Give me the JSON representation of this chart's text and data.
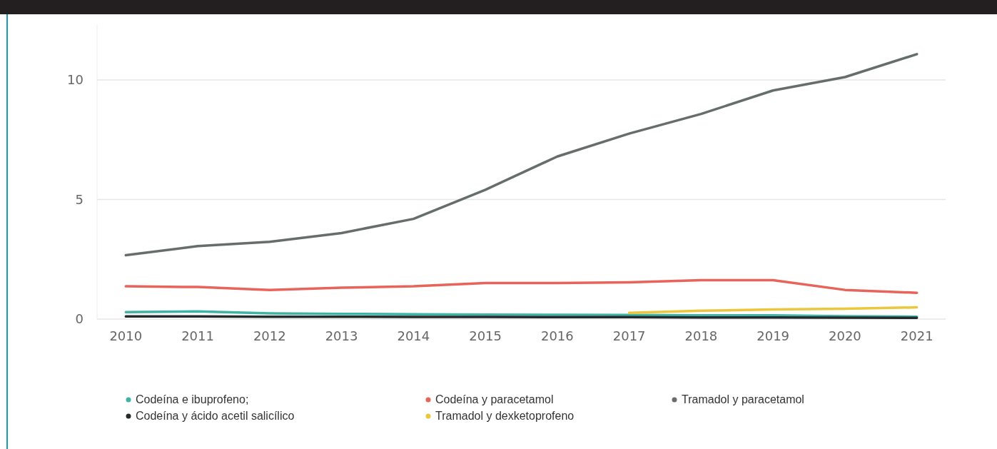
{
  "chart_data": {
    "type": "line",
    "categories": [
      "2010",
      "2011",
      "2012",
      "2013",
      "2014",
      "2015",
      "2016",
      "2017",
      "2018",
      "2019",
      "2020",
      "2021"
    ],
    "series": [
      {
        "name": "Codeína e ibuprofeno;",
        "color": "#3fb3a5",
        "values": [
          0.29,
          0.32,
          0.24,
          0.22,
          0.2,
          0.19,
          0.18,
          0.17,
          0.16,
          0.16,
          0.12,
          0.1
        ]
      },
      {
        "name": "Codeína y paracetamol",
        "color": "#e8635a",
        "values": [
          1.37,
          1.34,
          1.22,
          1.31,
          1.37,
          1.51,
          1.51,
          1.54,
          1.63,
          1.63,
          1.22,
          1.1
        ]
      },
      {
        "name": "Tramadol y paracetamol",
        "color": "#656d6d",
        "values": [
          2.67,
          3.05,
          3.23,
          3.6,
          4.19,
          5.41,
          6.8,
          7.76,
          8.58,
          9.56,
          10.12,
          11.08
        ]
      },
      {
        "name": "Codeína y ácido acetil salicílico",
        "color": "#252a2c",
        "values": [
          0.11,
          0.11,
          0.1,
          0.1,
          0.09,
          0.09,
          0.08,
          0.08,
          0.07,
          0.07,
          0.06,
          0.05
        ]
      },
      {
        "name": "Tramadol y dexketoprofeno",
        "color": "#ecc73c",
        "values": [
          null,
          null,
          null,
          null,
          null,
          null,
          null,
          0.26,
          0.35,
          0.4,
          0.43,
          0.49
        ]
      }
    ],
    "ylim": [
      0,
      12.3
    ],
    "yticks": [
      0,
      5,
      10
    ],
    "grid": "y",
    "legend": "bottom",
    "marker": "none",
    "line_style": "solid"
  }
}
